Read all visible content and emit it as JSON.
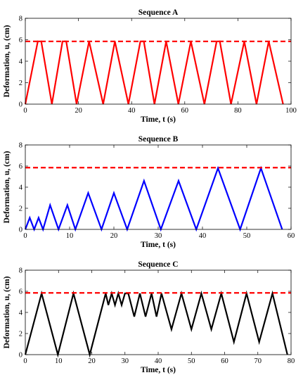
{
  "chart_data": [
    {
      "type": "line",
      "title": "Sequence A",
      "xlabel": "Time, t (s)",
      "ylabel": "Deformation, u, (cm)",
      "xlim": [
        0,
        100
      ],
      "ylim": [
        0,
        8
      ],
      "xticks": [
        0,
        20,
        40,
        60,
        80,
        100
      ],
      "yticks": [
        0,
        2,
        4,
        6,
        8
      ],
      "grid": false,
      "series": [
        {
          "color": "#ff0000",
          "style": "solid",
          "x": [
            0,
            4.7,
            6.0,
            10.0,
            14.0,
            15.4,
            19.3,
            24.0,
            29.3,
            33.7,
            38.8,
            43.3,
            44.6,
            48.6,
            53.0,
            57.6,
            62.3,
            67.4,
            72.0,
            73.2,
            77.4,
            82.4,
            87.0,
            91.6,
            97.0
          ],
          "y": [
            0,
            5.85,
            5.85,
            0,
            5.85,
            5.85,
            0,
            5.85,
            0,
            5.85,
            0,
            5.85,
            5.85,
            0,
            5.85,
            0,
            5.85,
            0,
            5.85,
            5.85,
            0,
            5.85,
            0,
            5.85,
            0
          ]
        },
        {
          "color": "#ff0000",
          "style": "dashed",
          "x": [
            0,
            100
          ],
          "y": [
            5.85,
            5.85
          ]
        }
      ]
    },
    {
      "type": "line",
      "title": "Sequence B",
      "xlabel": "Time, t (s)",
      "ylabel": "Deformation, u, (cm)",
      "xlim": [
        0,
        60
      ],
      "ylim": [
        0,
        8
      ],
      "xticks": [
        0,
        10,
        20,
        30,
        40,
        50,
        60
      ],
      "yticks": [
        0,
        2,
        4,
        6,
        8
      ],
      "grid": false,
      "series": [
        {
          "color": "#0000ff",
          "style": "solid",
          "x": [
            0,
            1.0,
            2.0,
            3.0,
            4.0,
            5.6,
            7.5,
            9.5,
            11.3,
            14.2,
            17.2,
            20.0,
            23.0,
            26.8,
            30.6,
            34.6,
            38.6,
            43.5,
            48.5,
            53.2,
            58.0
          ],
          "y": [
            0,
            1.1,
            0,
            1.1,
            0,
            2.3,
            0,
            2.3,
            0,
            3.45,
            0,
            3.45,
            0,
            4.6,
            0,
            4.6,
            0,
            5.8,
            0,
            5.8,
            0
          ]
        },
        {
          "color": "#ff0000",
          "style": "dashed",
          "x": [
            0,
            60
          ],
          "y": [
            5.85,
            5.85
          ]
        }
      ]
    },
    {
      "type": "line",
      "title": "Sequence C",
      "xlabel": "Time, t (s)",
      "ylabel": "Deformation, u, (cm)",
      "xlim": [
        0,
        80
      ],
      "ylim": [
        0,
        8
      ],
      "xticks": [
        0,
        10,
        20,
        30,
        40,
        50,
        60,
        70,
        80
      ],
      "yticks": [
        0,
        2,
        4,
        6,
        8
      ],
      "grid": false,
      "series": [
        {
          "color": "#000000",
          "style": "solid",
          "x": [
            0,
            4.9,
            9.8,
            14.5,
            19.4,
            24.2,
            25.0,
            26.0,
            27.0,
            28.0,
            29.0,
            30.0,
            31.0,
            32.8,
            34.5,
            36.2,
            38.0,
            39.5,
            41.0,
            44.0,
            47.0,
            50.0,
            53.0,
            56.0,
            59.0,
            62.8,
            66.6,
            70.4,
            74.4,
            78.9
          ],
          "y": [
            0,
            5.8,
            0,
            5.8,
            0,
            5.8,
            4.7,
            5.8,
            4.7,
            5.8,
            4.7,
            5.8,
            5.8,
            3.6,
            5.8,
            3.6,
            5.8,
            3.6,
            5.8,
            2.4,
            5.8,
            2.4,
            5.8,
            2.4,
            5.8,
            1.2,
            5.8,
            1.2,
            5.8,
            0
          ]
        },
        {
          "color": "#ff0000",
          "style": "dashed",
          "x": [
            0,
            80
          ],
          "y": [
            5.85,
            5.85
          ]
        }
      ]
    }
  ]
}
